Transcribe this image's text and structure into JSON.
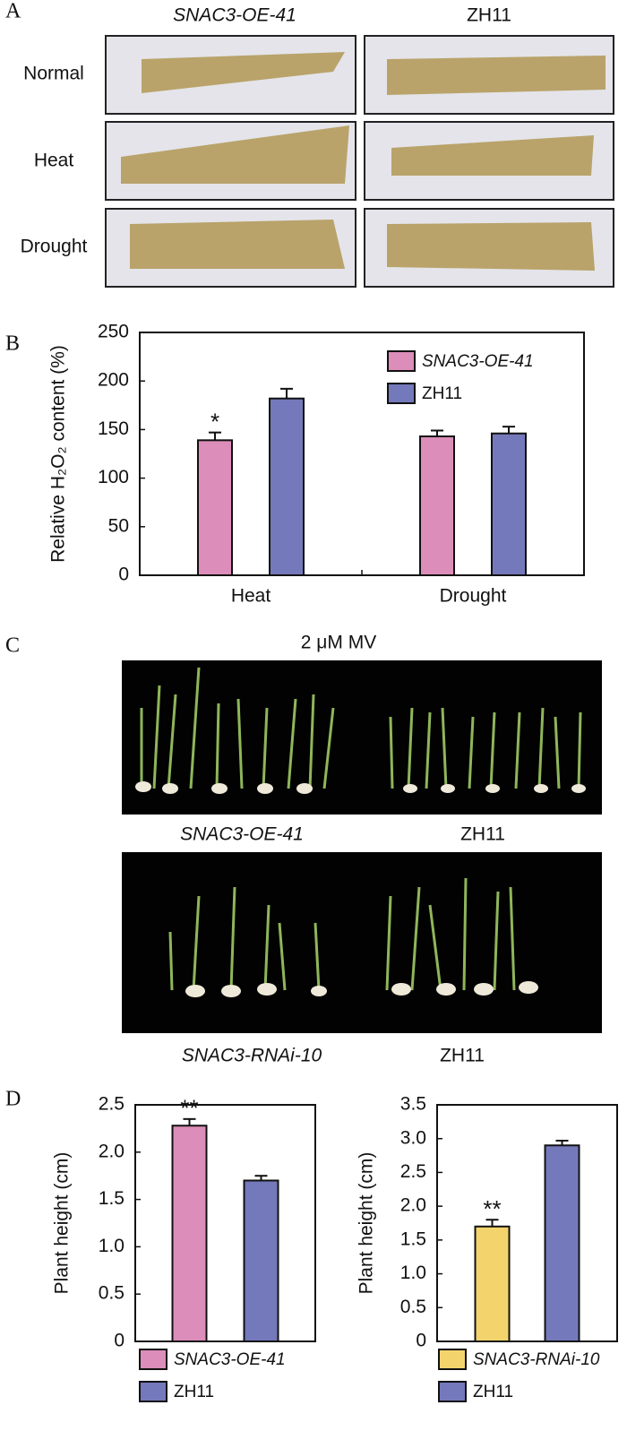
{
  "panel_labels": [
    "A",
    "B",
    "C",
    "D"
  ],
  "panel_a": {
    "columns": [
      "SNAC3-OE-41",
      "ZH11"
    ],
    "rows": [
      "Normal",
      "Heat",
      "Drought"
    ]
  },
  "panel_c": {
    "title": "2 μM MV",
    "top_labels": [
      "SNAC3-OE-41",
      "ZH11"
    ],
    "bottom_labels": [
      "SNAC3-RNAi-10",
      "ZH11"
    ]
  },
  "chart_data": [
    {
      "type": "bar",
      "y_label": "Relative H₂O₂ content (%)",
      "categories": [
        "Heat",
        "Drought"
      ],
      "series": [
        {
          "name": "SNAC3-OE-41",
          "color": "#dc8db9",
          "values": [
            139,
            143
          ],
          "errors": [
            8,
            6
          ],
          "significance": [
            "*",
            null
          ]
        },
        {
          "name": "ZH11",
          "color": "#7479bb",
          "values": [
            182,
            146
          ],
          "errors": [
            10,
            7
          ],
          "significance": [
            null,
            null
          ]
        }
      ],
      "ylim": [
        0,
        250
      ],
      "yticks": [
        0,
        50,
        100,
        150,
        200,
        250
      ]
    },
    {
      "type": "bar",
      "y_label": "Plant height (cm)",
      "categories": [
        null
      ],
      "series": [
        {
          "name": "SNAC3-OE-41",
          "color": "#dc8db9",
          "values": [
            2.28
          ],
          "errors": [
            0.07
          ],
          "significance": [
            "**"
          ]
        },
        {
          "name": "ZH11",
          "color": "#7479bb",
          "values": [
            1.7
          ],
          "errors": [
            0.05
          ],
          "significance": [
            null
          ]
        }
      ],
      "ylim": [
        0,
        2.5
      ],
      "yticks": [
        0,
        0.5,
        {
          "value": 1,
          "label": "1.0"
        },
        1.5,
        {
          "value": 2,
          "label": "2.0"
        },
        2.5
      ]
    },
    {
      "type": "bar",
      "y_label": "Plant height (cm)",
      "categories": [
        null
      ],
      "series": [
        {
          "name": "SNAC3-RNAi-10",
          "color": "#f3d46c",
          "values": [
            1.7
          ],
          "errors": [
            0.1
          ],
          "significance": [
            "**"
          ]
        },
        {
          "name": "ZH11",
          "color": "#7479bb",
          "values": [
            2.9
          ],
          "errors": [
            0.07
          ],
          "significance": [
            null
          ]
        }
      ],
      "ylim": [
        0,
        3.5
      ],
      "yticks": [
        0,
        0.5,
        {
          "value": 1,
          "label": "1.0"
        },
        1.5,
        {
          "value": 2,
          "label": "2.0"
        },
        2.5,
        {
          "value": 3,
          "label": "3.0"
        },
        3.5
      ]
    }
  ]
}
